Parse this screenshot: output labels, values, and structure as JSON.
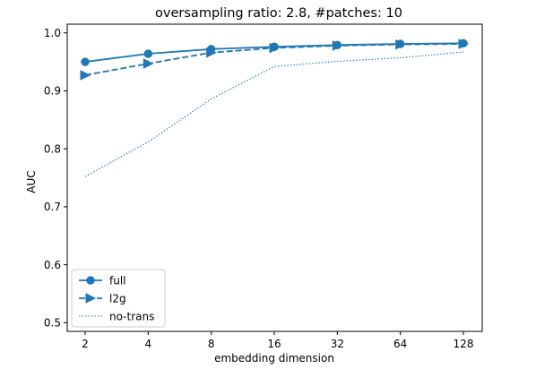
{
  "chart_data": {
    "type": "line",
    "title": "oversampling ratio: 2.8, #patches: 10",
    "xlabel": "embedding dimension",
    "ylabel": "AUC",
    "categories": [
      "2",
      "4",
      "8",
      "16",
      "32",
      "64",
      "128"
    ],
    "x_scale": "log2",
    "ylim": [
      0.485,
      1.015
    ],
    "yticks": [
      "0.5",
      "0.6",
      "0.7",
      "0.8",
      "0.9",
      "1.0"
    ],
    "ytick_values": [
      0.5,
      0.6,
      0.7,
      0.8,
      0.9,
      1.0
    ],
    "grid": false,
    "legend_position": "lower-left",
    "series": [
      {
        "name": "full",
        "style": "solid",
        "marker": "circle",
        "values": [
          0.95,
          0.964,
          0.972,
          0.976,
          0.979,
          0.981,
          0.982
        ]
      },
      {
        "name": "l2g",
        "style": "dashed",
        "marker": "triangle-right",
        "values": [
          0.927,
          0.947,
          0.966,
          0.974,
          0.978,
          0.98,
          0.981
        ]
      },
      {
        "name": "no-trans",
        "style": "dotted",
        "marker": "none",
        "values": [
          0.752,
          0.812,
          0.886,
          0.942,
          0.951,
          0.957,
          0.967
        ]
      }
    ],
    "colors": {
      "line": "#1f77b4",
      "axis": "#000000"
    }
  }
}
